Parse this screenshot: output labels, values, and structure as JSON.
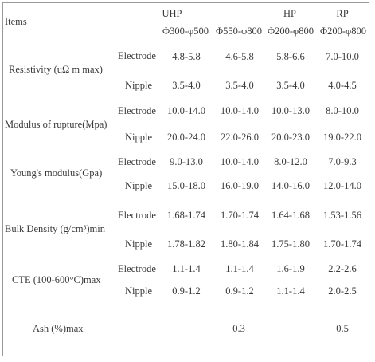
{
  "header": {
    "items_label": "Items",
    "grade_uhp": "UHP",
    "grade_hp": "HP",
    "grade_rp": "RP",
    "size_1": "Φ300-φ500",
    "size_2": "Φ550-φ800",
    "size_3": "Φ200-φ800",
    "size_4": "Φ200-φ800"
  },
  "rows": [
    {
      "property": "Resistivity (uΩ m max)",
      "electrode_label": "Electrode",
      "nipple_label": "Nipple",
      "electrode": [
        "4.8-5.8",
        "4.6-5.8",
        "5.8-6.6",
        "7.0-10.0"
      ],
      "nipple": [
        "3.5-4.0",
        "3.5-4.0",
        "3.5-4.0",
        "4.0-4.5"
      ]
    },
    {
      "property": "Modulus of rupture(Mpa)",
      "electrode_label": "Electrode",
      "nipple_label": "Nipple",
      "electrode": [
        "10.0-14.0",
        "10.0-14.0",
        "10.0-13.0",
        "8.0-10.0"
      ],
      "nipple": [
        "20.0-24.0",
        "22.0-26.0",
        "20.0-23.0",
        "19.0-22.0"
      ]
    },
    {
      "property": "Young's modulus(Gpa)",
      "electrode_label": "Electrode",
      "nipple_label": "Nipple",
      "electrode": [
        "9.0-13.0",
        "10.0-14.0",
        "8.0-12.0",
        "7.0-9.3"
      ],
      "nipple": [
        "15.0-18.0",
        "16.0-19.0",
        "14.0-16.0",
        "12.0-14.0"
      ]
    },
    {
      "property": "Bulk Density (g/cm³)min",
      "electrode_label": "Electrode",
      "nipple_label": "Nipple",
      "electrode": [
        "1.68-1.74",
        "1.70-1.74",
        "1.64-1.68",
        "1.53-1.56"
      ],
      "nipple": [
        "1.78-1.82",
        "1.80-1.84",
        "1.75-1.80",
        "1.70-1.74"
      ]
    },
    {
      "property": "CTE (100-600°C)max",
      "electrode_label": "Electrode",
      "nipple_label": "Nipple",
      "electrode": [
        "1.1-1.4",
        "1.1-1.4",
        "1.6-1.9",
        "2.2-2.6"
      ],
      "nipple": [
        "0.9-1.2",
        "0.9-1.2",
        "1.1-1.4",
        "2.0-2.5"
      ]
    }
  ],
  "ash": {
    "property": "Ash (%)max",
    "uhp": "0.3",
    "rp": "0.5"
  }
}
